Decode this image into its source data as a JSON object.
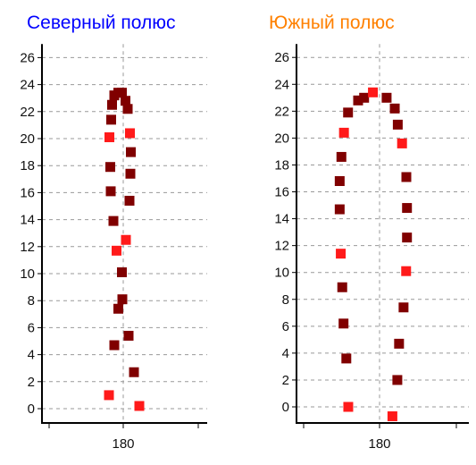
{
  "colors": {
    "dark": "#800000",
    "bright": "#ff1a1a",
    "grid": "#999999",
    "axis": "#000000"
  },
  "chart_data": [
    {
      "type": "scatter",
      "title": "Северный полюс",
      "title_color": "#0000ff",
      "xlabel": "",
      "ylabel": "",
      "grid": true,
      "ylim": [
        -1,
        27
      ],
      "yticks": [
        0,
        2,
        4,
        6,
        8,
        10,
        12,
        14,
        16,
        18,
        20,
        22,
        24,
        26
      ],
      "xtick_labels": [
        "180"
      ],
      "points": [
        {
          "x": 176.8,
          "y": 1.0,
          "c": "bright"
        },
        {
          "x": 183.6,
          "y": 0.2,
          "c": "bright"
        },
        {
          "x": 182.4,
          "y": 2.7,
          "c": "dark"
        },
        {
          "x": 178.0,
          "y": 4.7,
          "c": "dark"
        },
        {
          "x": 181.2,
          "y": 5.4,
          "c": "dark"
        },
        {
          "x": 178.9,
          "y": 7.4,
          "c": "dark"
        },
        {
          "x": 179.8,
          "y": 8.1,
          "c": "dark"
        },
        {
          "x": 179.7,
          "y": 10.1,
          "c": "dark"
        },
        {
          "x": 178.5,
          "y": 11.7,
          "c": "bright"
        },
        {
          "x": 180.6,
          "y": 12.5,
          "c": "bright"
        },
        {
          "x": 177.8,
          "y": 13.9,
          "c": "dark"
        },
        {
          "x": 181.4,
          "y": 15.4,
          "c": "dark"
        },
        {
          "x": 177.2,
          "y": 16.1,
          "c": "dark"
        },
        {
          "x": 181.6,
          "y": 17.4,
          "c": "dark"
        },
        {
          "x": 177.1,
          "y": 17.9,
          "c": "dark"
        },
        {
          "x": 181.7,
          "y": 19.0,
          "c": "dark"
        },
        {
          "x": 176.9,
          "y": 20.1,
          "c": "bright"
        },
        {
          "x": 181.5,
          "y": 20.4,
          "c": "bright"
        },
        {
          "x": 177.3,
          "y": 21.4,
          "c": "dark"
        },
        {
          "x": 181.0,
          "y": 22.2,
          "c": "dark"
        },
        {
          "x": 177.5,
          "y": 22.5,
          "c": "dark"
        },
        {
          "x": 180.5,
          "y": 22.8,
          "c": "dark"
        },
        {
          "x": 178.0,
          "y": 23.2,
          "c": "dark"
        },
        {
          "x": 178.9,
          "y": 23.4,
          "c": "dark"
        },
        {
          "x": 179.7,
          "y": 23.4,
          "c": "dark"
        }
      ]
    },
    {
      "type": "scatter",
      "title": "Южный полюс",
      "title_color": "#ff8000",
      "xlabel": "",
      "ylabel": "",
      "grid": true,
      "ylim": [
        -1,
        27
      ],
      "yticks": [
        0,
        2,
        4,
        6,
        8,
        10,
        12,
        14,
        16,
        18,
        20,
        22,
        24,
        26
      ],
      "xtick_labels": [
        "180"
      ],
      "points": [
        {
          "x": 165.4,
          "y": 0.0,
          "c": "bright"
        },
        {
          "x": 186.0,
          "y": -0.7,
          "c": "bright"
        },
        {
          "x": 188.3,
          "y": 2.0,
          "c": "dark"
        },
        {
          "x": 164.5,
          "y": 3.6,
          "c": "dark"
        },
        {
          "x": 189.1,
          "y": 4.7,
          "c": "dark"
        },
        {
          "x": 163.2,
          "y": 6.2,
          "c": "dark"
        },
        {
          "x": 191.2,
          "y": 7.4,
          "c": "dark"
        },
        {
          "x": 162.6,
          "y": 8.9,
          "c": "dark"
        },
        {
          "x": 192.4,
          "y": 10.1,
          "c": "bright"
        },
        {
          "x": 161.9,
          "y": 11.4,
          "c": "bright"
        },
        {
          "x": 192.8,
          "y": 12.6,
          "c": "dark"
        },
        {
          "x": 161.4,
          "y": 14.7,
          "c": "dark"
        },
        {
          "x": 192.8,
          "y": 14.8,
          "c": "dark"
        },
        {
          "x": 161.4,
          "y": 16.8,
          "c": "dark"
        },
        {
          "x": 192.5,
          "y": 17.1,
          "c": "dark"
        },
        {
          "x": 162.2,
          "y": 18.6,
          "c": "dark"
        },
        {
          "x": 190.5,
          "y": 19.6,
          "c": "bright"
        },
        {
          "x": 163.4,
          "y": 20.4,
          "c": "bright"
        },
        {
          "x": 188.5,
          "y": 21.0,
          "c": "dark"
        },
        {
          "x": 187.1,
          "y": 22.2,
          "c": "dark"
        },
        {
          "x": 165.3,
          "y": 21.9,
          "c": "dark"
        },
        {
          "x": 183.3,
          "y": 23.0,
          "c": "dark"
        },
        {
          "x": 172.8,
          "y": 23.0,
          "c": "dark"
        },
        {
          "x": 170.0,
          "y": 22.8,
          "c": "dark"
        },
        {
          "x": 176.9,
          "y": 23.4,
          "c": "bright"
        }
      ]
    }
  ]
}
